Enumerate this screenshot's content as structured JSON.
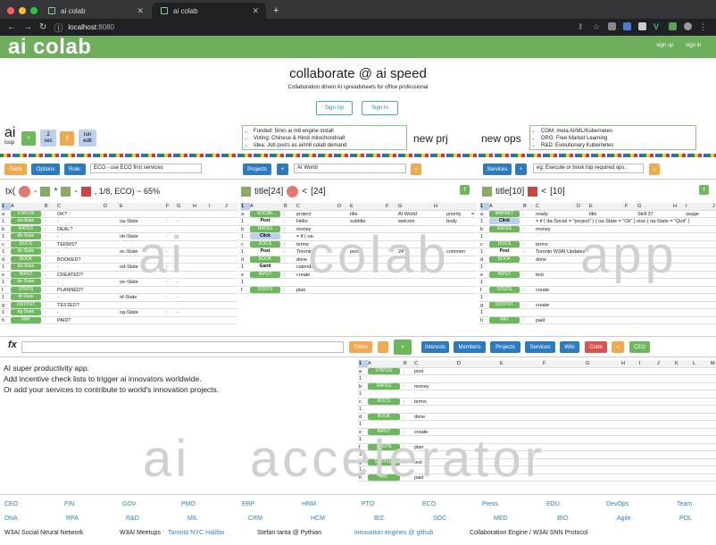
{
  "browser": {
    "tab1": "ai colab",
    "tab2": "ai colab",
    "url_host": "localhost",
    "url_port": ":8080"
  },
  "brand": {
    "logo": "ai colab",
    "sign_up": "sign up",
    "sign_in": "sign in"
  },
  "hero": {
    "title": "collaborate @ ai speed",
    "subtitle": "Collaboration driven AI spreadsheets for office professional",
    "signup": "Sign Up",
    "signin": "Sign In"
  },
  "loop": {
    "title": "ai",
    "sub": "loop",
    "play": ">",
    "sec": "2",
    "sec_label": "sec",
    "pause": "||",
    "run": "run",
    "edit": "edit"
  },
  "news": [
    "Funded: 5min ai m8 engine install",
    "Voting: Chinese & Hindi mitochondria8",
    "Idea: Job posts as ai/m8 colab demand"
  ],
  "new_prj": "new prj",
  "new_ops": "new ops",
  "ops": [
    "COM: meta AI/ML/Kubernetes",
    "ORG: Free Market Learning",
    "R&D: Evolutionary Kubernetes"
  ],
  "toolbar": {
    "rank": "Rank",
    "options": "Options",
    "rule": "Rule:",
    "rule_value": "ECO - use ECO first services",
    "projects": "Projects",
    "plus": "+",
    "project_value": "AI World",
    "services": "Services",
    "services_value": "eg: Execute or book top required ops."
  },
  "formula": {
    "prefix": "tx(",
    "dash": "-",
    "star": "*",
    "tail": ", 1/8, ECO) ~ 65%"
  },
  "sheet1": {
    "title": "",
    "cols": [
      "1",
      "A",
      "B",
      "C",
      "D",
      "E",
      "F",
      "G",
      "H",
      "I",
      "J",
      "K"
    ],
    "rows": [
      [
        "a",
        "STATUS",
        ":",
        "OK?",
        "",
        "",
        ""
      ],
      [
        "1",
        "da-State",
        ":",
        "-",
        "",
        "oa-State",
        ":",
        "-"
      ],
      [
        "b",
        "RATES",
        ":",
        "DEAL?"
      ],
      [
        "1",
        "db-State",
        ":",
        "-",
        "",
        "ob-State",
        ":",
        "-"
      ],
      [
        "c",
        "DOCS",
        ":",
        "TERMS?"
      ],
      [
        "1",
        "dc-State",
        ":",
        "-",
        "",
        "oc-State",
        ":",
        "-"
      ],
      [
        "d",
        "BOOK",
        ":",
        "BOOKED?"
      ],
      [
        "1",
        "dd-State",
        ":",
        "-",
        "",
        "od-State",
        ":",
        "-"
      ],
      [
        "e",
        "INPUT",
        ":",
        "CREATED?"
      ],
      [
        "1",
        "de-State",
        ":",
        "-",
        "",
        "oe-State",
        ":",
        "-"
      ],
      [
        "f",
        "STEPS",
        ":",
        "PLANNED?"
      ],
      [
        "1",
        "df-State",
        ":",
        "-",
        "",
        "of-State",
        ":",
        "-"
      ],
      [
        "g",
        "OUTPUT",
        ":",
        "TESTED?"
      ],
      [
        "1",
        "dg-State",
        ":",
        "-",
        "",
        "og-State",
        ":",
        "-"
      ],
      [
        "h",
        "PAY",
        ":",
        "PAID?"
      ]
    ]
  },
  "sheet2": {
    "title": "title[24]",
    "count": "[24]",
    "cols": [
      "1",
      "A",
      "B",
      "C",
      "D",
      "E",
      "F",
      "G",
      "H"
    ],
    "rows": [
      [
        "a",
        "SOCIAL",
        ":",
        "project",
        "",
        "title",
        "",
        "AI World",
        "",
        "priority",
        "=",
        "1"
      ],
      [
        "1",
        "Post",
        ":",
        "Hello",
        "",
        "subtitle",
        "",
        "welcom",
        "",
        "body",
        "",
        "AI"
      ],
      [
        "b",
        "RATES",
        ":",
        "money"
      ],
      [
        "1",
        "Click",
        "",
        "= if ( oa-"
      ],
      [
        "c",
        "DOCS",
        ":",
        "terms"
      ],
      [
        "1",
        "Post",
        ":",
        "Toronto",
        "",
        "posts",
        "",
        "24",
        "",
        "commen",
        "",
        "38"
      ],
      [
        "d",
        "BOOK",
        ":",
        "done"
      ],
      [
        "1",
        "Gantt",
        "",
        "calendar"
      ],
      [
        "e",
        "INPUT",
        ":",
        "create"
      ],
      [
        "1",
        "",
        "",
        ""
      ],
      [
        "f",
        "STEPS",
        ":",
        "plan"
      ]
    ]
  },
  "sheet3": {
    "title": "title[10]",
    "count": "[10]",
    "cols": [
      "1",
      "A",
      "B",
      "C",
      "D",
      "E",
      "F",
      "G",
      "H",
      "I",
      "J",
      "K"
    ],
    "rows": [
      [
        "a",
        "MARKET",
        ":",
        "ready",
        "",
        "title",
        "",
        "Skill 37",
        "",
        "usage",
        "",
        "247"
      ],
      [
        "1",
        "Click",
        "",
        "= if ( da-Social = \"project\" ) { oa-State = \"Ok\" } else { oa-State = \"Quit\" }"
      ],
      [
        "b",
        "RATES",
        ":",
        "money"
      ],
      [
        "1",
        "",
        "",
        ""
      ],
      [
        "c",
        "DOCS",
        ":",
        "terms"
      ],
      [
        "1",
        "Post",
        ":",
        "Toronto W3AI Updates"
      ],
      [
        "d",
        "BOOK",
        ":",
        "done"
      ],
      [
        "1",
        "",
        "",
        ""
      ],
      [
        "e",
        "INPUT",
        ":",
        "test"
      ],
      [
        "1",
        "",
        "",
        ""
      ],
      [
        "f",
        "STEPS",
        ":",
        "create"
      ],
      [
        "1",
        "",
        "",
        ""
      ],
      [
        "g",
        "OUTPUT",
        ":",
        "create"
      ],
      [
        "1",
        "",
        "",
        ""
      ],
      [
        "h",
        "PAY",
        ":",
        "paid"
      ]
    ]
  },
  "fx": {
    "label": "fx",
    "clone": "Clone",
    "go": ">",
    "interests": "Interests",
    "members": "Members",
    "projects": "Projects",
    "services": "Services",
    "wiki": "Wiki",
    "code": "Code",
    "back": "<",
    "ceo": "CEO"
  },
  "editor": {
    "lines": [
      "AI super productivity app.",
      "Add incentive check lists to trigger ai innovators worldwide.",
      "Or add your services to contribute to world's innovation projects."
    ]
  },
  "sheet4": {
    "cols": [
      "1",
      "A",
      "B",
      "C",
      "D",
      "E",
      "F",
      "G",
      "H",
      "I",
      "J",
      "K",
      "L",
      "M",
      "N",
      "O",
      "P"
    ],
    "rows": [
      [
        "a",
        "STATUS",
        ":",
        "post"
      ],
      [
        "1",
        "",
        "",
        ""
      ],
      [
        "b",
        "RATES",
        ":",
        "money"
      ],
      [
        "1",
        "",
        "",
        ""
      ],
      [
        "c",
        "DOCS",
        ":",
        "terms"
      ],
      [
        "1",
        "",
        "",
        ""
      ],
      [
        "d",
        "BOOK",
        ":",
        "done"
      ],
      [
        "1",
        "",
        "",
        ""
      ],
      [
        "e",
        "INPUT",
        ":",
        "create"
      ],
      [
        "1",
        "",
        "",
        ""
      ],
      [
        "f",
        "STEPS",
        ":",
        "plan"
      ],
      [
        "1",
        "",
        "",
        ""
      ],
      [
        "g",
        "OUTPUT",
        ":",
        "test"
      ],
      [
        "1",
        "",
        "",
        ""
      ],
      [
        "h",
        "PAY",
        ":",
        "paid"
      ]
    ]
  },
  "watermarks": {
    "a": "ai",
    "b": "colab",
    "c": "app",
    "d": "ai",
    "e": "accelerator"
  },
  "footer": {
    "row1": [
      "CEO",
      "FIN",
      "GOV",
      "PMO",
      "ERP",
      "HRM",
      "PTO",
      "EDU",
      "DevOps",
      "Team"
    ],
    "row2": [
      "DNA",
      "RPA",
      "R&D",
      "MIL",
      "CRM",
      "HCM",
      "BIZ",
      "SOC",
      "MED",
      "BIO",
      "Agile",
      "POL"
    ],
    "row2b": [
      "ECO",
      "Press"
    ],
    "social": "W3AI Social Neural Network",
    "meetups": "W3AI Meetups",
    "meetups_link": "Toronto NYC Halifax",
    "author": "Stefan Ianta @ Pythian",
    "engines": "innovation engines @ github",
    "engine": "Collaboration Engine / W3AI SNN Protocol"
  },
  "colors": {
    "brand": "#6fae5d",
    "link": "#2b83c7"
  }
}
